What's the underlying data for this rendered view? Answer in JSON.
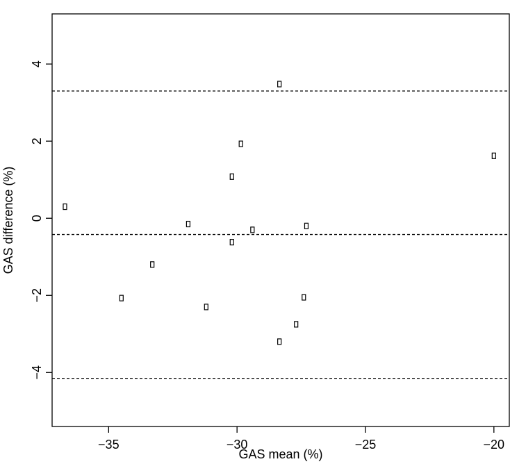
{
  "chart_data": {
    "type": "scatter",
    "title": "",
    "xlabel": "GAS mean (%)",
    "ylabel": "GAS difference (%)",
    "xlim": [
      -37.2,
      -19.4
    ],
    "ylim": [
      -5.4,
      5.3
    ],
    "x_ticks": [
      -35,
      -30,
      -25,
      -20
    ],
    "y_ticks": [
      -4,
      -2,
      0,
      2,
      4
    ],
    "x_tick_labels": [
      "−35",
      "−30",
      "−25",
      "−20"
    ],
    "y_tick_labels": [
      "−4",
      "−2",
      "0",
      "2",
      "4"
    ],
    "grid": false,
    "legend": "none",
    "marker": "open-rectangle",
    "points": [
      {
        "x": -36.7,
        "y": 0.3
      },
      {
        "x": -34.5,
        "y": -2.07
      },
      {
        "x": -33.3,
        "y": -1.2
      },
      {
        "x": -31.9,
        "y": -0.15
      },
      {
        "x": -31.2,
        "y": -2.3
      },
      {
        "x": -30.2,
        "y": 1.08
      },
      {
        "x": -30.2,
        "y": -0.62
      },
      {
        "x": -29.85,
        "y": 1.93
      },
      {
        "x": -29.4,
        "y": -0.3
      },
      {
        "x": -28.35,
        "y": 3.48
      },
      {
        "x": -28.35,
        "y": -3.2
      },
      {
        "x": -27.7,
        "y": -2.75
      },
      {
        "x": -27.4,
        "y": -2.05
      },
      {
        "x": -27.3,
        "y": -0.2
      },
      {
        "x": -20.0,
        "y": 1.62
      }
    ],
    "reference_lines": [
      {
        "name": "upper limit of agreement",
        "y": 3.3,
        "style": "dashed"
      },
      {
        "name": "mean difference",
        "y": -0.42,
        "style": "dashed"
      },
      {
        "name": "lower limit of agreement",
        "y": -4.15,
        "style": "dashed"
      }
    ],
    "colors": {
      "points": "#000000",
      "lines": "#000000",
      "axes": "#000000",
      "background": "#ffffff"
    }
  }
}
